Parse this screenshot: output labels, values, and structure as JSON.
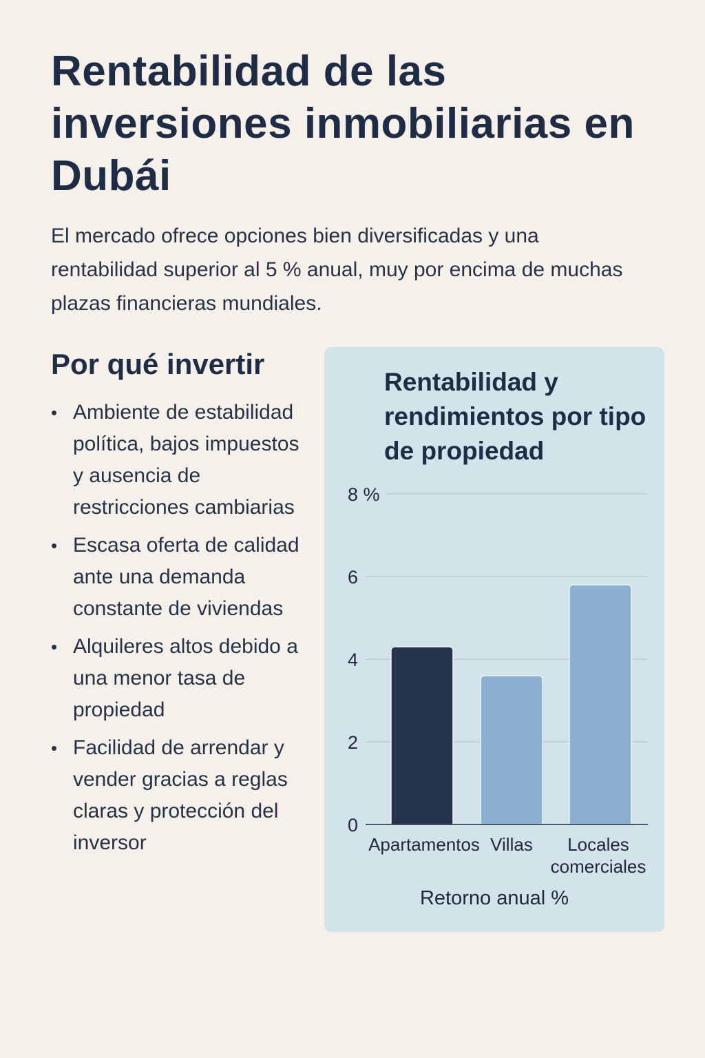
{
  "title": "Rentabilidad de las inversiones inmobiliarias en Dubái",
  "intro": "El mercado ofrece opciones bien diversificadas y una rentabilidad superior al 5 % anual, muy por encima de muchas plazas financieras mundiales.",
  "why": {
    "heading": "Por qué invertir",
    "items": [
      "Ambiente de estabilidad política, bajos impuestos y ausencia de restricciones cambiarias",
      "Escasa oferta de calidad ante una demanda constante de viviendas",
      "Alquileres altos debido a una menor tasa de propiedad",
      "Facilidad de arrendar y vender gracias a reglas claras y protección del inversor"
    ]
  },
  "chart_data": {
    "type": "bar",
    "title": "Rentabilidad y rendimientos por tipo de propiedad",
    "categories": [
      "Apartamentos",
      "Villas",
      "Locales comerciales"
    ],
    "values": [
      4.3,
      3.6,
      5.8
    ],
    "xlabel": "Retorno anual %",
    "ylabel": "",
    "ylim": [
      0,
      8
    ],
    "yticks": [
      "0",
      "2",
      "4",
      "6",
      "8 %"
    ],
    "grid": true,
    "colors": [
      "#25334d",
      "#8bb0d2",
      "#8bb0d2"
    ]
  }
}
